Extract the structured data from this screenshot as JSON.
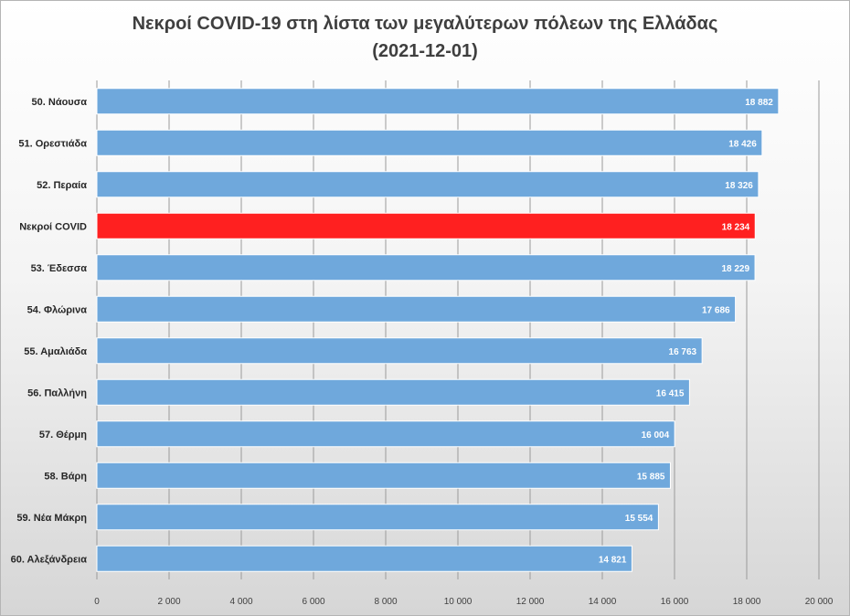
{
  "chart_data": {
    "type": "bar",
    "orientation": "horizontal",
    "title": "Νεκροί COVID-19 στη λίστα των μεγαλύτερων πόλεων της Ελλάδας",
    "subtitle": "(2021-12-01)",
    "xlabel": "",
    "ylabel": "",
    "xlim": [
      0,
      20000
    ],
    "tick_values": [
      0,
      2000,
      4000,
      6000,
      8000,
      10000,
      12000,
      14000,
      16000,
      18000,
      20000
    ],
    "tick_labels": [
      "0",
      "2 000",
      "4 000",
      "6 000",
      "8 000",
      "10 000",
      "12 000",
      "14 000",
      "16 000",
      "18 000",
      "20 000"
    ],
    "grid": true,
    "categories": [
      "50. Νάουσα",
      "51. Ορεστιάδα",
      "52. Περαία",
      "Νεκροί COVID",
      "53. Έδεσσα",
      "54. Φλώρινα",
      "55. Αμαλιάδα",
      "56. Παλλήνη",
      "57. Θέρμη",
      "58. Βάρη",
      "59. Νέα Μάκρη",
      "60. Αλεξάνδρεια"
    ],
    "values": [
      18882,
      18426,
      18326,
      18234,
      18229,
      17686,
      16763,
      16415,
      16004,
      15885,
      15554,
      14821
    ],
    "value_labels": [
      "18 882",
      "18 426",
      "18 326",
      "18 234",
      "18 229",
      "17 686",
      "16 763",
      "16 415",
      "16 004",
      "15 885",
      "15 554",
      "14 821"
    ],
    "bar_colors": [
      "#6fa8dc",
      "#6fa8dc",
      "#6fa8dc",
      "#ff2020",
      "#6fa8dc",
      "#6fa8dc",
      "#6fa8dc",
      "#6fa8dc",
      "#6fa8dc",
      "#6fa8dc",
      "#6fa8dc",
      "#6fa8dc"
    ],
    "highlight_category": "Νεκροί COVID"
  },
  "colors": {
    "bar": "#6fa8dc",
    "bar_border": "#ffffff",
    "highlight": "#ff2020",
    "gridline": "#9a9a9a"
  }
}
